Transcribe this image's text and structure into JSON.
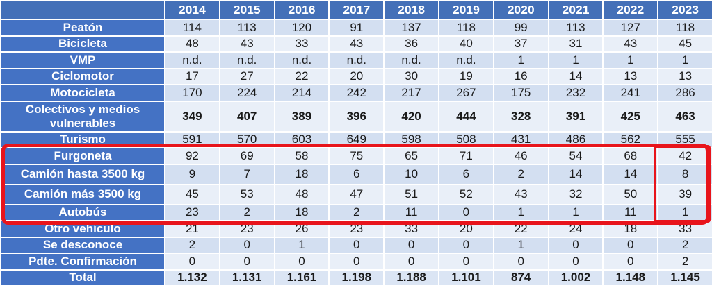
{
  "table": {
    "years": [
      "2014",
      "2015",
      "2016",
      "2017",
      "2018",
      "2019",
      "2020",
      "2021",
      "2022",
      "2023"
    ],
    "rows": [
      {
        "label": "Peatón",
        "values": [
          "114",
          "113",
          "120",
          "91",
          "137",
          "118",
          "99",
          "113",
          "127",
          "118"
        ]
      },
      {
        "label": "Bicicleta",
        "values": [
          "48",
          "43",
          "33",
          "43",
          "36",
          "40",
          "37",
          "31",
          "43",
          "45"
        ]
      },
      {
        "label": "VMP",
        "values": [
          "n.d.",
          "n.d.",
          "n.d.",
          "n.d.",
          "n.d.",
          "n.d.",
          "1",
          "1",
          "1",
          "1"
        ]
      },
      {
        "label": "Ciclomotor",
        "values": [
          "17",
          "27",
          "22",
          "20",
          "30",
          "19",
          "16",
          "14",
          "13",
          "13"
        ]
      },
      {
        "label": "Motocicleta",
        "values": [
          "170",
          "224",
          "214",
          "242",
          "217",
          "267",
          "175",
          "232",
          "241",
          "286"
        ]
      },
      {
        "label": "Colectivos y medios vulnerables",
        "values": [
          "349",
          "407",
          "389",
          "396",
          "420",
          "444",
          "328",
          "391",
          "425",
          "463"
        ]
      },
      {
        "label": "Turismo",
        "values": [
          "591",
          "570",
          "603",
          "649",
          "598",
          "508",
          "431",
          "486",
          "562",
          "555"
        ]
      },
      {
        "label": "Furgoneta",
        "values": [
          "92",
          "69",
          "58",
          "75",
          "65",
          "71",
          "46",
          "54",
          "68",
          "42"
        ]
      },
      {
        "label": "Camión hasta 3500 kg",
        "values": [
          "9",
          "7",
          "18",
          "6",
          "10",
          "6",
          "2",
          "14",
          "14",
          "8"
        ]
      },
      {
        "label": "Camión más 3500 kg",
        "values": [
          "45",
          "53",
          "48",
          "47",
          "51",
          "52",
          "43",
          "32",
          "50",
          "39"
        ]
      },
      {
        "label": "Autobús",
        "values": [
          "23",
          "2",
          "18",
          "2",
          "11",
          "0",
          "1",
          "1",
          "11",
          "1"
        ]
      },
      {
        "label": "Otro vehículo",
        "values": [
          "21",
          "23",
          "26",
          "23",
          "33",
          "20",
          "22",
          "24",
          "18",
          "33"
        ]
      },
      {
        "label": "Se desconoce",
        "values": [
          "2",
          "0",
          "1",
          "0",
          "0",
          "0",
          "1",
          "0",
          "0",
          "2"
        ]
      },
      {
        "label": "Pdte. Confirmación",
        "values": [
          "0",
          "0",
          "0",
          "0",
          "0",
          "0",
          "0",
          "0",
          "0",
          "2"
        ]
      },
      {
        "label": "Total",
        "values": [
          "1.132",
          "1.131",
          "1.161",
          "1.198",
          "1.188",
          "1.101",
          "874",
          "1.002",
          "1.148",
          "1.145"
        ]
      }
    ]
  },
  "colors": {
    "header_blue": "#4472c4",
    "row_light": "#d3dff1",
    "row_lighter": "#e9eff8",
    "highlight_red": "#e8141b"
  }
}
